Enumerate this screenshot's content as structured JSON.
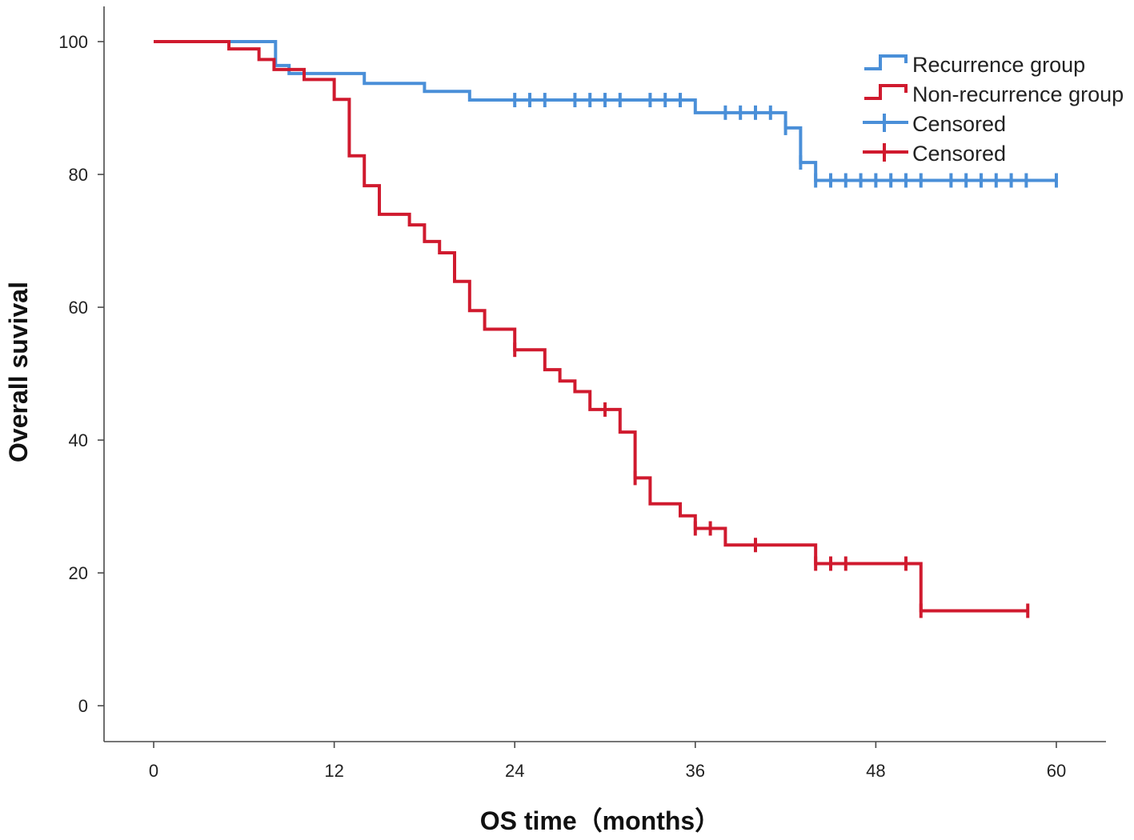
{
  "chart_data": {
    "type": "line",
    "step": true,
    "xlabel": "OS time（months）",
    "ylabel": "Overall suvival",
    "xlim": [
      -3.3,
      63.3
    ],
    "ylim": [
      -5.4,
      105.3
    ],
    "x_ticks": [
      0,
      12,
      24,
      36,
      48,
      60
    ],
    "y_ticks": [
      0,
      20,
      40,
      60,
      80,
      100
    ],
    "grid": false,
    "legend_position": "top-right",
    "series": [
      {
        "name": "Recurrence group",
        "censored_label": "Censored",
        "color": "#4a8fd8",
        "start": [
          0,
          100
        ],
        "steps": [
          [
            8.1,
            96.4
          ],
          [
            9,
            95.2
          ],
          [
            14,
            93.7
          ],
          [
            18,
            92.5
          ],
          [
            21,
            91.2
          ],
          [
            36,
            89.3
          ],
          [
            42,
            87.0
          ],
          [
            43,
            81.8
          ],
          [
            44,
            79.1
          ]
        ],
        "end": 60,
        "censored": [
          24,
          25,
          26,
          28,
          29,
          30,
          31,
          33,
          34,
          35,
          38,
          39,
          40,
          41,
          42,
          43,
          44,
          45,
          46,
          47,
          48,
          49,
          50,
          51,
          53,
          54,
          55,
          56,
          57,
          58,
          60
        ]
      },
      {
        "name": "Non-recurrence group",
        "censored_label": "Censored",
        "color": "#d01a2e",
        "start": [
          0,
          100
        ],
        "steps": [
          [
            5,
            98.9
          ],
          [
            7,
            97.3
          ],
          [
            8,
            95.8
          ],
          [
            10,
            94.3
          ],
          [
            12,
            91.3
          ],
          [
            13,
            82.8
          ],
          [
            14,
            78.3
          ],
          [
            15,
            74.0
          ],
          [
            17,
            72.4
          ],
          [
            18,
            69.9
          ],
          [
            19,
            68.2
          ],
          [
            20,
            63.9
          ],
          [
            21,
            59.5
          ],
          [
            22,
            56.7
          ],
          [
            24,
            53.6
          ],
          [
            26,
            50.6
          ],
          [
            27,
            48.9
          ],
          [
            28,
            47.3
          ],
          [
            29,
            44.6
          ],
          [
            31,
            41.2
          ],
          [
            32,
            34.3
          ],
          [
            33,
            30.4
          ],
          [
            35,
            28.6
          ],
          [
            36,
            26.7
          ],
          [
            38,
            24.2
          ],
          [
            44,
            21.4
          ],
          [
            51,
            14.3
          ]
        ],
        "end": 58.1,
        "censored": [
          24,
          30,
          32,
          36,
          37,
          40,
          44,
          45,
          46,
          50,
          51,
          58.1
        ]
      }
    ]
  }
}
